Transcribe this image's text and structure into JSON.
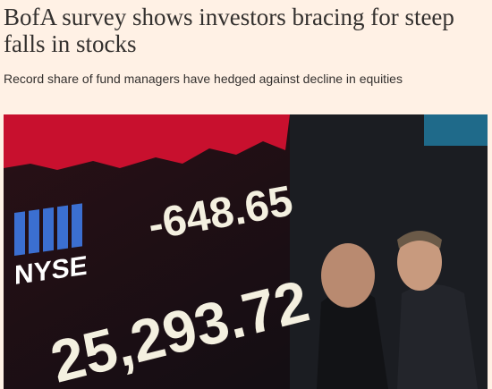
{
  "header": {
    "title": "BofA survey shows investors bracing for steep falls in stocks",
    "subtitle": "Record share of fund managers have hedged against decline in equities"
  },
  "image": {
    "logo": "NYSE",
    "change": "-648.65",
    "index": "25,293.72"
  }
}
